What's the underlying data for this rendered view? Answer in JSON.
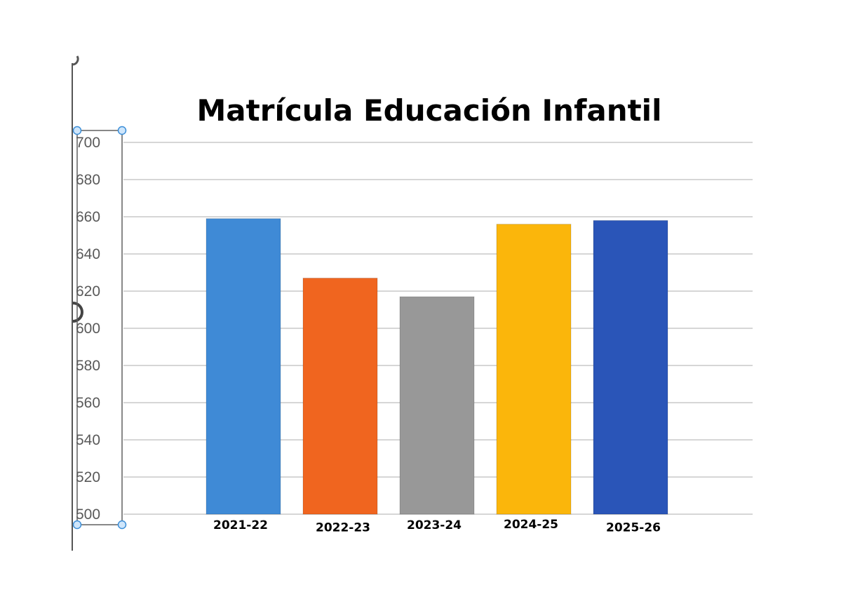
{
  "chart_data": {
    "type": "bar",
    "title": "Matrícula  Educación Infantil",
    "xlabel": "",
    "ylabel": "",
    "ylim": [
      500,
      700
    ],
    "yticks": [
      "700",
      "680",
      "660",
      "640",
      "620",
      "600",
      "580",
      "560",
      "540",
      "520",
      "500"
    ],
    "ytick_values": [
      700,
      680,
      660,
      640,
      620,
      600,
      580,
      560,
      540,
      520,
      500
    ],
    "categories": [
      "2021-22",
      "2022-23",
      "2023-24",
      "2024-25",
      "2025-26"
    ],
    "values": [
      659,
      627,
      617,
      656,
      658
    ],
    "colors": [
      "#3f8ad6",
      "#f0651f",
      "#989898",
      "#fbb60b",
      "#2a55b8"
    ],
    "grid": true,
    "legend": "none"
  }
}
